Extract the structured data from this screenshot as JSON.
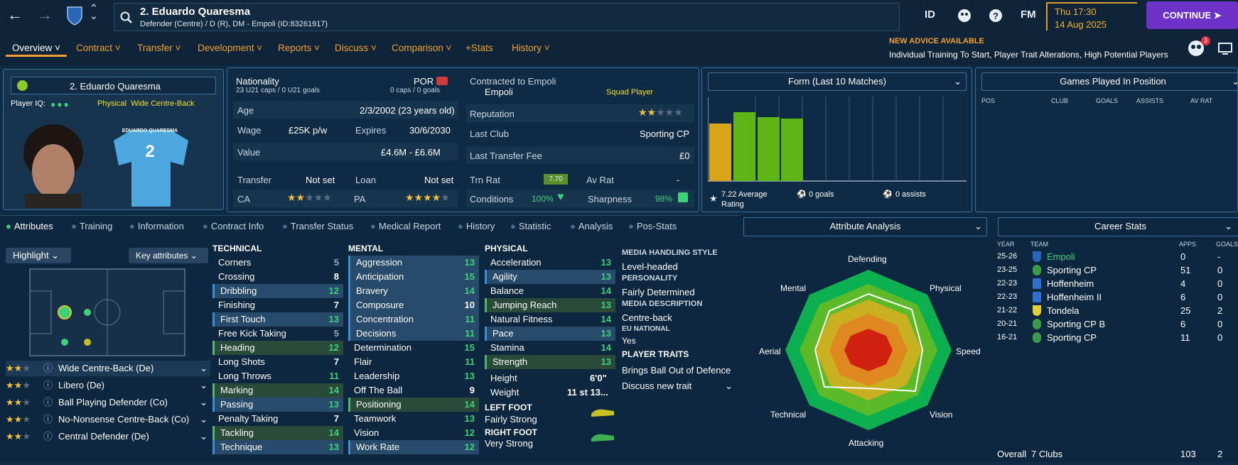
{
  "header": {
    "player_title": "2. Eduardo Quaresma",
    "player_sub": "Defender (Centre) / D (R), DM - Empoli (ID:83261917)",
    "icons": {
      "id": "ID",
      "fm": "FM",
      "help": "?"
    },
    "date": "Thu 17:30",
    "date2": "14 Aug 2025",
    "continue": "CONTINUE"
  },
  "nav": {
    "items": [
      "Overview",
      "Contract",
      "Transfer",
      "Development",
      "Reports",
      "Discuss",
      "Comparison",
      "+Stats",
      "History"
    ],
    "advice_title": "NEW ADVICE AVAILABLE",
    "advice_text": "Individual Training To Start, Player Trait Alterations, High Potential Players",
    "badge": "3"
  },
  "profile": {
    "name": "2. Eduardo Quaresma",
    "iq_label": "Player IQ:",
    "archetype": "Physical  Wide Centre-Back",
    "shirt_name": "EDUARDO QUARESMA",
    "shirt_no": "2"
  },
  "info": {
    "nationality_label": "Nationality",
    "nationality": "POR",
    "caps": "23 U21 caps / 0 U21 goals",
    "caps2": "0 caps / 0 goals",
    "age_label": "Age",
    "age": "2/3/2002 (23 years old)",
    "wage_label": "Wage",
    "wage": "£25K p/w",
    "expires_label": "Expires",
    "expires": "30/6/2030",
    "value_label": "Value",
    "value": "£4.6M - £6.6M",
    "transfer_label": "Transfer",
    "transfer": "Not set",
    "loan_label": "Loan",
    "loan": "Not set",
    "ca_label": "CA",
    "pa_label": "PA",
    "contracted_label": "Contracted to Empoli",
    "club": "Empoli",
    "squad": "Squad Player",
    "reputation_label": "Reputation",
    "lastclub_label": "Last Club",
    "lastclub": "Sporting CP",
    "fee_label": "Last Transfer Fee",
    "fee": "£0",
    "trn_label": "Trn Rat",
    "trn": "7.70",
    "av_label": "Av Rat",
    "av": "-",
    "cond_label": "Conditions",
    "cond": "100%",
    "sharp_label": "Sharpness",
    "sharp": "98%"
  },
  "form": {
    "title": "Form (Last 10 Matches)",
    "avg": "7.22 Average Rating",
    "goals": "0 goals",
    "assists": "0 assists"
  },
  "games": {
    "title": "Games Played In Position",
    "cols": [
      "POS",
      "CLUB",
      "GOALS",
      "ASSISTS",
      "AV RAT"
    ]
  },
  "tabs": [
    "Attributes",
    "Training",
    "Information",
    "Contract Info",
    "Transfer Status",
    "Medical Report",
    "History",
    "Statistic",
    "Analysis",
    "Pos-Stats"
  ],
  "pitch": {
    "highlight": "Highlight",
    "key": "Key attributes"
  },
  "roles": [
    {
      "name": "Wide Centre-Back (De)"
    },
    {
      "name": "Libero (De)"
    },
    {
      "name": "Ball Playing Defender (Co)"
    },
    {
      "name": "No-Nonsense Centre-Back (Co)"
    },
    {
      "name": "Central Defender (De)"
    }
  ],
  "technical": {
    "title": "TECHNICAL",
    "items": [
      [
        "Corners",
        "5"
      ],
      [
        "Crossing",
        "8"
      ],
      [
        "Dribbling",
        "12"
      ],
      [
        "Finishing",
        "7"
      ],
      [
        "First Touch",
        "13"
      ],
      [
        "Free Kick Taking",
        "5"
      ],
      [
        "Heading",
        "12"
      ],
      [
        "Long Shots",
        "7"
      ],
      [
        "Long Throws",
        "11"
      ],
      [
        "Marking",
        "14"
      ],
      [
        "Passing",
        "13"
      ],
      [
        "Penalty Taking",
        "7"
      ],
      [
        "Tackling",
        "14"
      ],
      [
        "Technique",
        "13"
      ]
    ]
  },
  "mental": {
    "title": "MENTAL",
    "items": [
      [
        "Aggression",
        "13"
      ],
      [
        "Anticipation",
        "15"
      ],
      [
        "Bravery",
        "14"
      ],
      [
        "Composure",
        "10"
      ],
      [
        "Concentration",
        "11"
      ],
      [
        "Decisions",
        "11"
      ],
      [
        "Determination",
        "15"
      ],
      [
        "Flair",
        "11"
      ],
      [
        "Leadership",
        "13"
      ],
      [
        "Off The Ball",
        "9"
      ],
      [
        "Positioning",
        "14"
      ],
      [
        "Teamwork",
        "13"
      ],
      [
        "Vision",
        "12"
      ],
      [
        "Work Rate",
        "12"
      ]
    ]
  },
  "physical": {
    "title": "PHYSICAL",
    "items": [
      [
        "Acceleration",
        "13"
      ],
      [
        "Agility",
        "13"
      ],
      [
        "Balance",
        "14"
      ],
      [
        "Jumping Reach",
        "13"
      ],
      [
        "Natural Fitness",
        "14"
      ],
      [
        "Pace",
        "13"
      ],
      [
        "Stamina",
        "14"
      ],
      [
        "Strength",
        "13"
      ]
    ],
    "height_label": "Height",
    "height": "6'0\"",
    "weight_label": "Weight",
    "weight": "11 st 13...",
    "left_label": "LEFT FOOT",
    "left": "Fairly Strong",
    "right_label": "RIGHT FOOT",
    "right": "Very Strong"
  },
  "media": {
    "style_label": "MEDIA HANDLING STYLE",
    "style": "Level-headed",
    "pers_label": "PERSONALITY",
    "pers": "Fairly Determined",
    "desc_label": "MEDIA DESCRIPTION",
    "desc": "Centre-back",
    "eu_label": "EU NATIONAL",
    "eu": "Yes",
    "traits_label": "PLAYER TRAITS",
    "trait1": "Brings Ball Out of Defence",
    "trait2": "Discuss new trait"
  },
  "analysis": {
    "title": "Attribute Analysis",
    "labels": [
      "Defending",
      "Physical",
      "Speed",
      "Vision",
      "Attacking",
      "Technical",
      "Aerial",
      "Mental"
    ]
  },
  "career": {
    "title": "Career Stats",
    "cols": [
      "YEAR",
      "TEAM",
      "APPS",
      "GOALS"
    ],
    "rows": [
      [
        "25-26",
        "Empoli",
        "0",
        "-"
      ],
      [
        "23-25",
        "Sporting CP",
        "51",
        "0"
      ],
      [
        "22-23",
        "Hoffenheim",
        "4",
        "0"
      ],
      [
        "22-23",
        "Hoffenheim II",
        "6",
        "0"
      ],
      [
        "21-22",
        "Tondela",
        "25",
        "2"
      ],
      [
        "20-21",
        "Sporting CP B",
        "6",
        "0"
      ],
      [
        "16-21",
        "Sporting CP",
        "11",
        "0"
      ]
    ],
    "overall": "Overall",
    "clubs": "7 Clubs",
    "total_apps": "103",
    "total_goals": "2"
  }
}
